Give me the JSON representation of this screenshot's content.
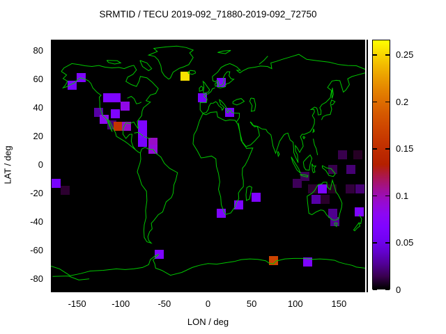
{
  "title": "SRMTID / TECU 2019-092_71880-2019-092_72750",
  "chart_data": {
    "type": "scatter",
    "subtype": "geo-scatter-on-world-map",
    "title": "SRMTID / TECU 2019-092_71880-2019-092_72750",
    "xlabel": "LON / deg",
    "ylabel": "LAT / deg",
    "xlim": [
      -180,
      180
    ],
    "ylim": [
      -89.4,
      87.8
    ],
    "xticks": [
      -150,
      -100,
      -50,
      0,
      50,
      100,
      150
    ],
    "yticks": [
      80,
      60,
      40,
      20,
      0,
      -20,
      -40,
      -60,
      -80
    ],
    "grid": false,
    "plot_background": "#000000",
    "coastline_color": "#00c800",
    "marker": "filled-square",
    "marker_size_px": 13,
    "colorbar": {
      "position": "right",
      "min": 0,
      "max": 0.266,
      "tick_values": [
        0,
        0.05,
        0.1,
        0.15,
        0.2,
        0.25
      ],
      "tick_labels": [
        "0",
        "0.05",
        "0.1",
        "0.15",
        "0.2",
        "0.25"
      ],
      "palette": "gnuplot default (rgbformulae 7,5,15): black-violet-magenta-red-orange-yellow",
      "palette_samples": {
        "0": "#000000",
        "0.05": "#6f02ec",
        "0.1": "#9c0eb4",
        "0.15": "#c02d17",
        "0.2": "#d97a00",
        "0.25": "#f6e300"
      }
    },
    "points": [
      {
        "lon": -145,
        "lat": 61,
        "value": 0.065
      },
      {
        "lon": -156,
        "lat": 56,
        "value": 0.06
      },
      {
        "lon": -115,
        "lat": 47,
        "value": 0.065
      },
      {
        "lon": -105,
        "lat": 47,
        "value": 0.065
      },
      {
        "lon": -95,
        "lat": 41,
        "value": 0.085
      },
      {
        "lon": -125,
        "lat": 37,
        "value": 0.03
      },
      {
        "lon": -106,
        "lat": 36,
        "value": 0.065
      },
      {
        "lon": -119,
        "lat": 32,
        "value": 0.08
      },
      {
        "lon": -110,
        "lat": 28,
        "value": 0.02
      },
      {
        "lon": -103,
        "lat": 27,
        "value": 0.155
      },
      {
        "lon": -93,
        "lat": 27,
        "value": 0.095
      },
      {
        "lon": -75,
        "lat": 28,
        "value": 0.065
      },
      {
        "lon": -75,
        "lat": 22,
        "value": 0.065
      },
      {
        "lon": -75,
        "lat": 16,
        "value": 0.06
      },
      {
        "lon": -63,
        "lat": 16,
        "value": 0.095
      },
      {
        "lon": -63,
        "lat": 11,
        "value": 0.09
      },
      {
        "lon": -26,
        "lat": 62,
        "value": 0.255
      },
      {
        "lon": 15,
        "lat": 58,
        "value": 0.065
      },
      {
        "lon": -6,
        "lat": 47,
        "value": 0.06
      },
      {
        "lon": 25,
        "lat": 37,
        "value": 0.06
      },
      {
        "lon": -174,
        "lat": -13,
        "value": 0.06
      },
      {
        "lon": -164,
        "lat": -18,
        "value": 0.008
      },
      {
        "lon": -56,
        "lat": -63,
        "value": 0.065
      },
      {
        "lon": 15,
        "lat": -34,
        "value": 0.065
      },
      {
        "lon": 35,
        "lat": -28,
        "value": 0.065
      },
      {
        "lon": 55,
        "lat": -23,
        "value": 0.065
      },
      {
        "lon": 102,
        "lat": -13,
        "value": 0.015
      },
      {
        "lon": 111,
        "lat": -8,
        "value": 0.015
      },
      {
        "lon": 154,
        "lat": 7,
        "value": 0.013
      },
      {
        "lon": 172,
        "lat": 7,
        "value": 0.006
      },
      {
        "lon": 143,
        "lat": -3,
        "value": 0.013
      },
      {
        "lon": 164,
        "lat": -3,
        "value": 0.02
      },
      {
        "lon": 120,
        "lat": -17,
        "value": 0.008
      },
      {
        "lon": 131,
        "lat": -17,
        "value": 0.065
      },
      {
        "lon": 142,
        "lat": -17,
        "value": 0.005
      },
      {
        "lon": 163,
        "lat": -17,
        "value": 0.01
      },
      {
        "lon": 174,
        "lat": -17,
        "value": 0.02
      },
      {
        "lon": 124,
        "lat": -24,
        "value": 0.03
      },
      {
        "lon": 134,
        "lat": -24,
        "value": 0.007
      },
      {
        "lon": 143,
        "lat": -34,
        "value": 0.025
      },
      {
        "lon": 173,
        "lat": -33,
        "value": 0.065
      },
      {
        "lon": 145,
        "lat": -40,
        "value": 0.025
      },
      {
        "lon": 75,
        "lat": -67,
        "value": 0.17
      },
      {
        "lon": 114,
        "lat": -68,
        "value": 0.065
      }
    ]
  }
}
